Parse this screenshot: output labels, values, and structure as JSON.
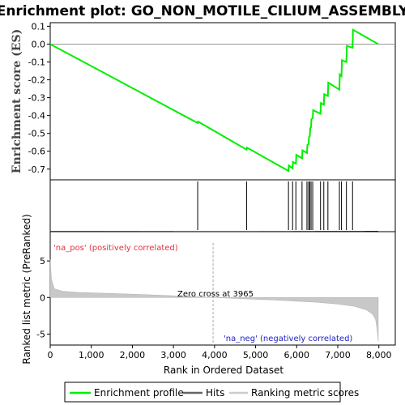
{
  "chart_data": {
    "type": "line",
    "title": "Enrichment plot: GO_NON_MOTILE_CILIUM_ASSEMBLY",
    "xlabel": "Rank in Ordered Dataset",
    "xlim": [
      0,
      8400
    ],
    "x_ticks": [
      0,
      1000,
      2000,
      3000,
      4000,
      5000,
      6000,
      7000,
      8000
    ],
    "x_tick_labels": [
      "0",
      "1,000",
      "2,000",
      "3,000",
      "4,000",
      "5,000",
      "6,000",
      "7,000",
      "8,000"
    ],
    "es_panel": {
      "ylabel": "Enrichment score (ES)",
      "ylim": [
        -0.76,
        0.12
      ],
      "y_ticks": [
        0.1,
        0.0,
        -0.1,
        -0.2,
        -0.3,
        -0.4,
        -0.5,
        -0.6,
        -0.7
      ],
      "y_tick_labels": [
        "0.1",
        "0.0",
        "-0.1",
        "-0.2",
        "-0.3",
        "-0.4",
        "-0.5",
        "-0.6",
        "-0.7"
      ],
      "series": [
        {
          "name": "Enrichment profile",
          "color": "#00ee00",
          "x": [
            0,
            3590,
            3600,
            4780,
            4790,
            5800,
            5810,
            5900,
            5910,
            5980,
            5990,
            6130,
            6140,
            6250,
            6260,
            6290,
            6300,
            6320,
            6330,
            6350,
            6360,
            6390,
            6400,
            6580,
            6590,
            6660,
            6670,
            6760,
            6770,
            7040,
            7050,
            7090,
            7100,
            7210,
            7220,
            7360,
            7370,
            7985
          ],
          "y": [
            0.0,
            -0.442,
            -0.434,
            -0.591,
            -0.58,
            -0.71,
            -0.68,
            -0.695,
            -0.66,
            -0.67,
            -0.62,
            -0.64,
            -0.595,
            -0.61,
            -0.565,
            -0.56,
            -0.52,
            -0.515,
            -0.47,
            -0.465,
            -0.42,
            -0.415,
            -0.37,
            -0.39,
            -0.33,
            -0.34,
            -0.28,
            -0.29,
            -0.215,
            -0.255,
            -0.17,
            -0.18,
            -0.09,
            -0.1,
            -0.01,
            -0.02,
            0.08,
            0.0
          ]
        }
      ]
    },
    "hits_panel": {
      "legend_name": "Hits",
      "hit_ranks": [
        3590,
        4780,
        5800,
        5900,
        5980,
        6130,
        6250,
        6290,
        6320,
        6350,
        6390,
        6580,
        6660,
        6760,
        7040,
        7090,
        7210,
        7360
      ]
    },
    "rank_metric_panel": {
      "ylabel": "Ranked list metric (PreRanked)",
      "ylim": [
        -6.5,
        9
      ],
      "y_ticks": [
        5,
        0,
        -5
      ],
      "y_tick_labels": [
        "5",
        "0",
        "-5"
      ],
      "zero_cross_label": "Zero cross at 3965",
      "zero_cross_rank": 3965,
      "pos_label": "'na_pos' (positively correlated)",
      "neg_label": "'na_neg' (negatively correlated)",
      "metric_profile": {
        "rank": [
          0,
          30,
          100,
          300,
          700,
          1500,
          2500,
          3500,
          3965,
          4500,
          5500,
          6500,
          7000,
          7400,
          7700,
          7850,
          7920,
          7960,
          7985
        ],
        "value": [
          5.2,
          2.5,
          1.2,
          0.85,
          0.7,
          0.55,
          0.35,
          0.12,
          0.0,
          -0.12,
          -0.35,
          -0.65,
          -0.9,
          -1.2,
          -1.7,
          -2.3,
          -3.0,
          -4.5,
          -6.0
        ]
      }
    },
    "colorbar": {
      "segments": [
        {
          "from": 0,
          "to": 1300,
          "color": "#f06070"
        },
        {
          "from": 1300,
          "to": 2150,
          "color": "#f07888"
        },
        {
          "from": 2150,
          "to": 3000,
          "color": "#f590a0"
        },
        {
          "from": 3000,
          "to": 3950,
          "color": "#fbc0e0"
        },
        {
          "from": 3950,
          "to": 5050,
          "color": "#d8d8f8"
        },
        {
          "from": 5050,
          "to": 5900,
          "color": "#c0c0f4"
        },
        {
          "from": 5900,
          "to": 6450,
          "color": "#9090ec"
        },
        {
          "from": 6450,
          "to": 7650,
          "color": "#6a5ce8"
        },
        {
          "from": 7650,
          "to": 7985,
          "color": "#3a10d0"
        }
      ]
    },
    "legend": {
      "placement": "bottom",
      "items": [
        {
          "label": "Enrichment profile",
          "color": "#00ee00"
        },
        {
          "label": "Hits",
          "color": "#666666"
        },
        {
          "label": "Ranking metric scores",
          "color": "#cccccc"
        }
      ]
    }
  }
}
